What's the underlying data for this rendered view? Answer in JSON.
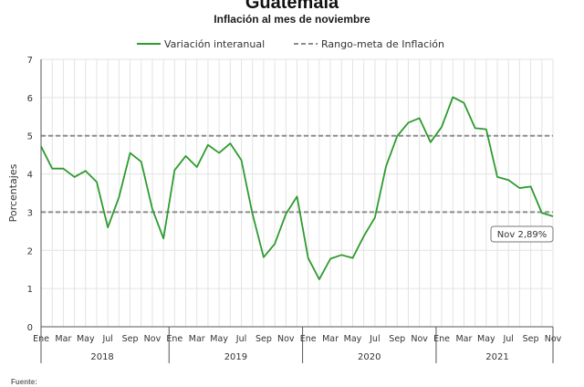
{
  "header": {
    "title": "Guatemala",
    "subtitle": "Inflación al mes de noviembre"
  },
  "footer": {
    "source_label": "Fuente:"
  },
  "chart_data": {
    "type": "line",
    "title": "Guatemala",
    "subtitle": "Inflación al mes de noviembre",
    "ylabel": "Porcentajes",
    "xlabel": "",
    "ylim": [
      0,
      7
    ],
    "yticks": [
      "0",
      "1",
      "2",
      "3",
      "4",
      "5",
      "6",
      "7"
    ],
    "grid": true,
    "legend_position": "top-center",
    "x_month_labels": [
      "Ene",
      "Mar",
      "May",
      "Jul",
      "Sep",
      "Nov"
    ],
    "year_groups": [
      "2018",
      "2019",
      "2020",
      "2021"
    ],
    "series": [
      {
        "name": "Variación interanual",
        "color": "#2e9b2e",
        "style": "solid",
        "values": [
          4.72,
          4.14,
          4.14,
          3.92,
          4.08,
          3.79,
          2.6,
          3.39,
          4.55,
          4.32,
          3.08,
          2.31,
          4.1,
          4.47,
          4.18,
          4.76,
          4.55,
          4.8,
          4.36,
          2.95,
          1.82,
          2.17,
          2.95,
          3.41,
          1.8,
          1.24,
          1.78,
          1.88,
          1.8,
          2.37,
          2.86,
          4.2,
          4.99,
          5.34,
          5.46,
          4.83,
          5.23,
          6.01,
          5.86,
          5.2,
          5.17,
          3.92,
          3.84,
          3.63,
          3.67,
          2.98,
          2.89
        ]
      },
      {
        "name": "Rango-meta de Inflación",
        "color": "#8c8c8c",
        "style": "dashed",
        "values_upper": 5,
        "values_lower": 3
      }
    ],
    "annotation": {
      "text": "Nov 2,89%",
      "month_index": 46,
      "value": 2.89
    }
  }
}
